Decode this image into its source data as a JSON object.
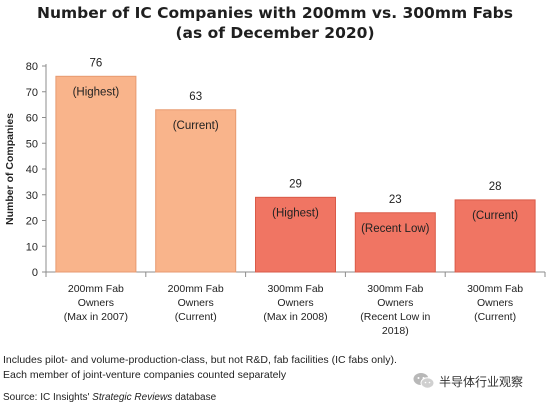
{
  "chart_data": {
    "type": "bar",
    "title": "Number of IC Companies with 200mm vs. 300mm Fabs",
    "subtitle": "(as of December 2020)",
    "ylabel": "Number of Companies",
    "xlabel": "",
    "ylim": [
      0,
      80
    ],
    "yticks": [
      0,
      10,
      20,
      30,
      40,
      50,
      60,
      70,
      80
    ],
    "grid": false,
    "categories": [
      [
        "200mm Fab",
        "Owners",
        "(Max in 2007)"
      ],
      [
        "200mm Fab",
        "Owners",
        "(Current)"
      ],
      [
        "300mm Fab",
        "Owners",
        "(Max in 2008)"
      ],
      [
        "300mm Fab",
        "Owners",
        "(Recent Low in",
        "2018)"
      ],
      [
        "300mm Fab",
        "Owners",
        "(Current)"
      ]
    ],
    "values": [
      76,
      63,
      29,
      23,
      28
    ],
    "annotations": [
      "(Highest)",
      "(Current)",
      "(Highest)",
      "(Recent Low)",
      "(Current)"
    ],
    "colors": [
      "#f9b48b",
      "#f9b48b",
      "#f07563",
      "#f07563",
      "#f07563"
    ],
    "edge_colors": [
      "#e79a70",
      "#e79a70",
      "#d95a48",
      "#d95a48",
      "#d95a48"
    ]
  },
  "notes": [
    "Includes pilot- and volume-production-class, but not R&D, fab facilities (IC fabs only).",
    "Each member of joint-venture companies counted separately"
  ],
  "source": {
    "prefix": "Source:  IC Insights' ",
    "italic": "Strategic Reviews",
    "suffix": " database"
  },
  "watermark": {
    "text": "半导体行业观察",
    "icon": "wechat-icon"
  }
}
